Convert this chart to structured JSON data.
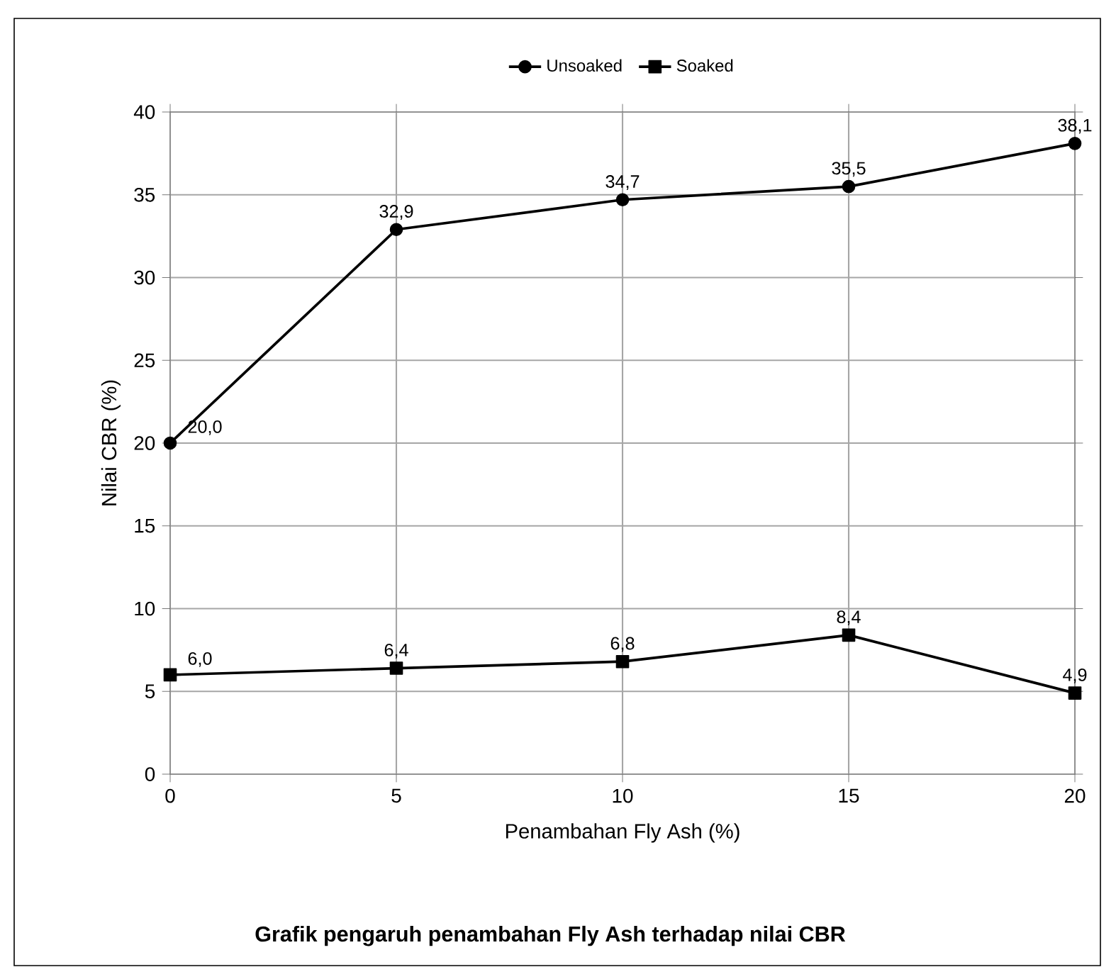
{
  "chart_data": {
    "type": "line",
    "title": "Grafik pengaruh penambahan Fly Ash terhadap nilai CBR",
    "xlabel": "Penambahan Fly Ash (%)",
    "ylabel": "Nilai CBR (%)",
    "x": [
      0,
      5,
      10,
      15,
      20
    ],
    "series": [
      {
        "name": "Unsoaked",
        "color": "#000000",
        "marker": "circle",
        "values": [
          20.0,
          32.9,
          34.7,
          35.5,
          38.1
        ],
        "value_labels": [
          "20,0",
          "32,9",
          "34,7",
          "35,5",
          "38,1"
        ]
      },
      {
        "name": "Soaked",
        "color": "#000000",
        "marker": "square",
        "values": [
          6.0,
          6.4,
          6.8,
          8.4,
          4.9
        ],
        "value_labels": [
          "6,0",
          "6,4",
          "6,8",
          "8,4",
          "4,9"
        ]
      }
    ],
    "xlim": [
      0,
      20
    ],
    "xticks": [
      0,
      5,
      10,
      15,
      20
    ],
    "ylim": [
      0,
      40
    ],
    "yticks": [
      0,
      5,
      10,
      15,
      20,
      25,
      30,
      35,
      40
    ],
    "grid": true,
    "legend": "top",
    "line_style": "solid"
  }
}
